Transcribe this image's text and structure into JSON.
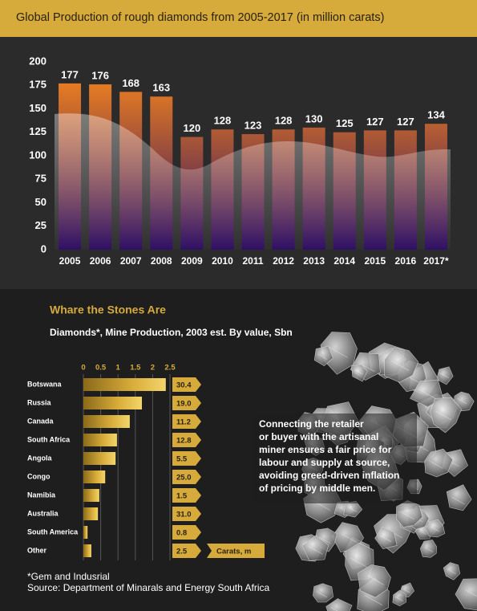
{
  "chart_data": [
    {
      "type": "bar",
      "title": "Global Production of rough diamonds from 2005-2017 (in million carats)",
      "categories": [
        "2005",
        "2006",
        "2007",
        "2008",
        "2009",
        "2010",
        "2011",
        "2012",
        "2013",
        "2014",
        "2015",
        "2016",
        "2017*"
      ],
      "values": [
        177,
        176,
        168,
        163,
        120,
        128,
        123,
        128,
        130,
        125,
        127,
        127,
        134
      ],
      "gradient": [
        "#ff8a1a",
        "#2a0b62"
      ],
      "ylim": [
        0,
        200
      ],
      "yticks": [
        0,
        25,
        50,
        75,
        100,
        125,
        150,
        175,
        200
      ]
    },
    {
      "type": "hbar",
      "title": "Whare the Stones Are",
      "subtitle": "Diamonds*, Mine Production, 2003 est. By value, Sbn",
      "categories": [
        "Botswana",
        "Russia",
        "Canada",
        "South Africa",
        "Angola",
        "Congo",
        "Namibia",
        "Australia",
        "South America",
        "Other"
      ],
      "values": [
        2.38,
        1.69,
        1.34,
        0.97,
        0.93,
        0.63,
        0.46,
        0.42,
        0.12,
        0.23
      ],
      "color": "#e9c14c",
      "xlim": [
        0,
        2.5
      ],
      "xticks": [
        0,
        0.5,
        1,
        1.5,
        2,
        2.5
      ],
      "grid": true,
      "carats": {
        "name": "Carats, m",
        "values": [
          30.4,
          19.0,
          11.2,
          12.8,
          5.5,
          25.0,
          1.5,
          31.0,
          0.8,
          2.5
        ],
        "value_labels": [
          "30.4",
          "19.0",
          "11.2",
          "12.8",
          "5.5",
          "25.0",
          "1.5",
          "31.0",
          "0.8",
          "2.5"
        ]
      }
    }
  ],
  "side_text": {
    "lines": [
      "Connecting the retailer",
      "or buyer with the artisanal",
      "miner ensures a fair price for",
      "labour and supply at source,",
      "avoiding greed-driven inflation",
      "of pricing by middle men."
    ]
  },
  "footnotes": [
    "*Gem and Indusrial",
    "Source: Department of Minarals and Energy South Africa"
  ]
}
